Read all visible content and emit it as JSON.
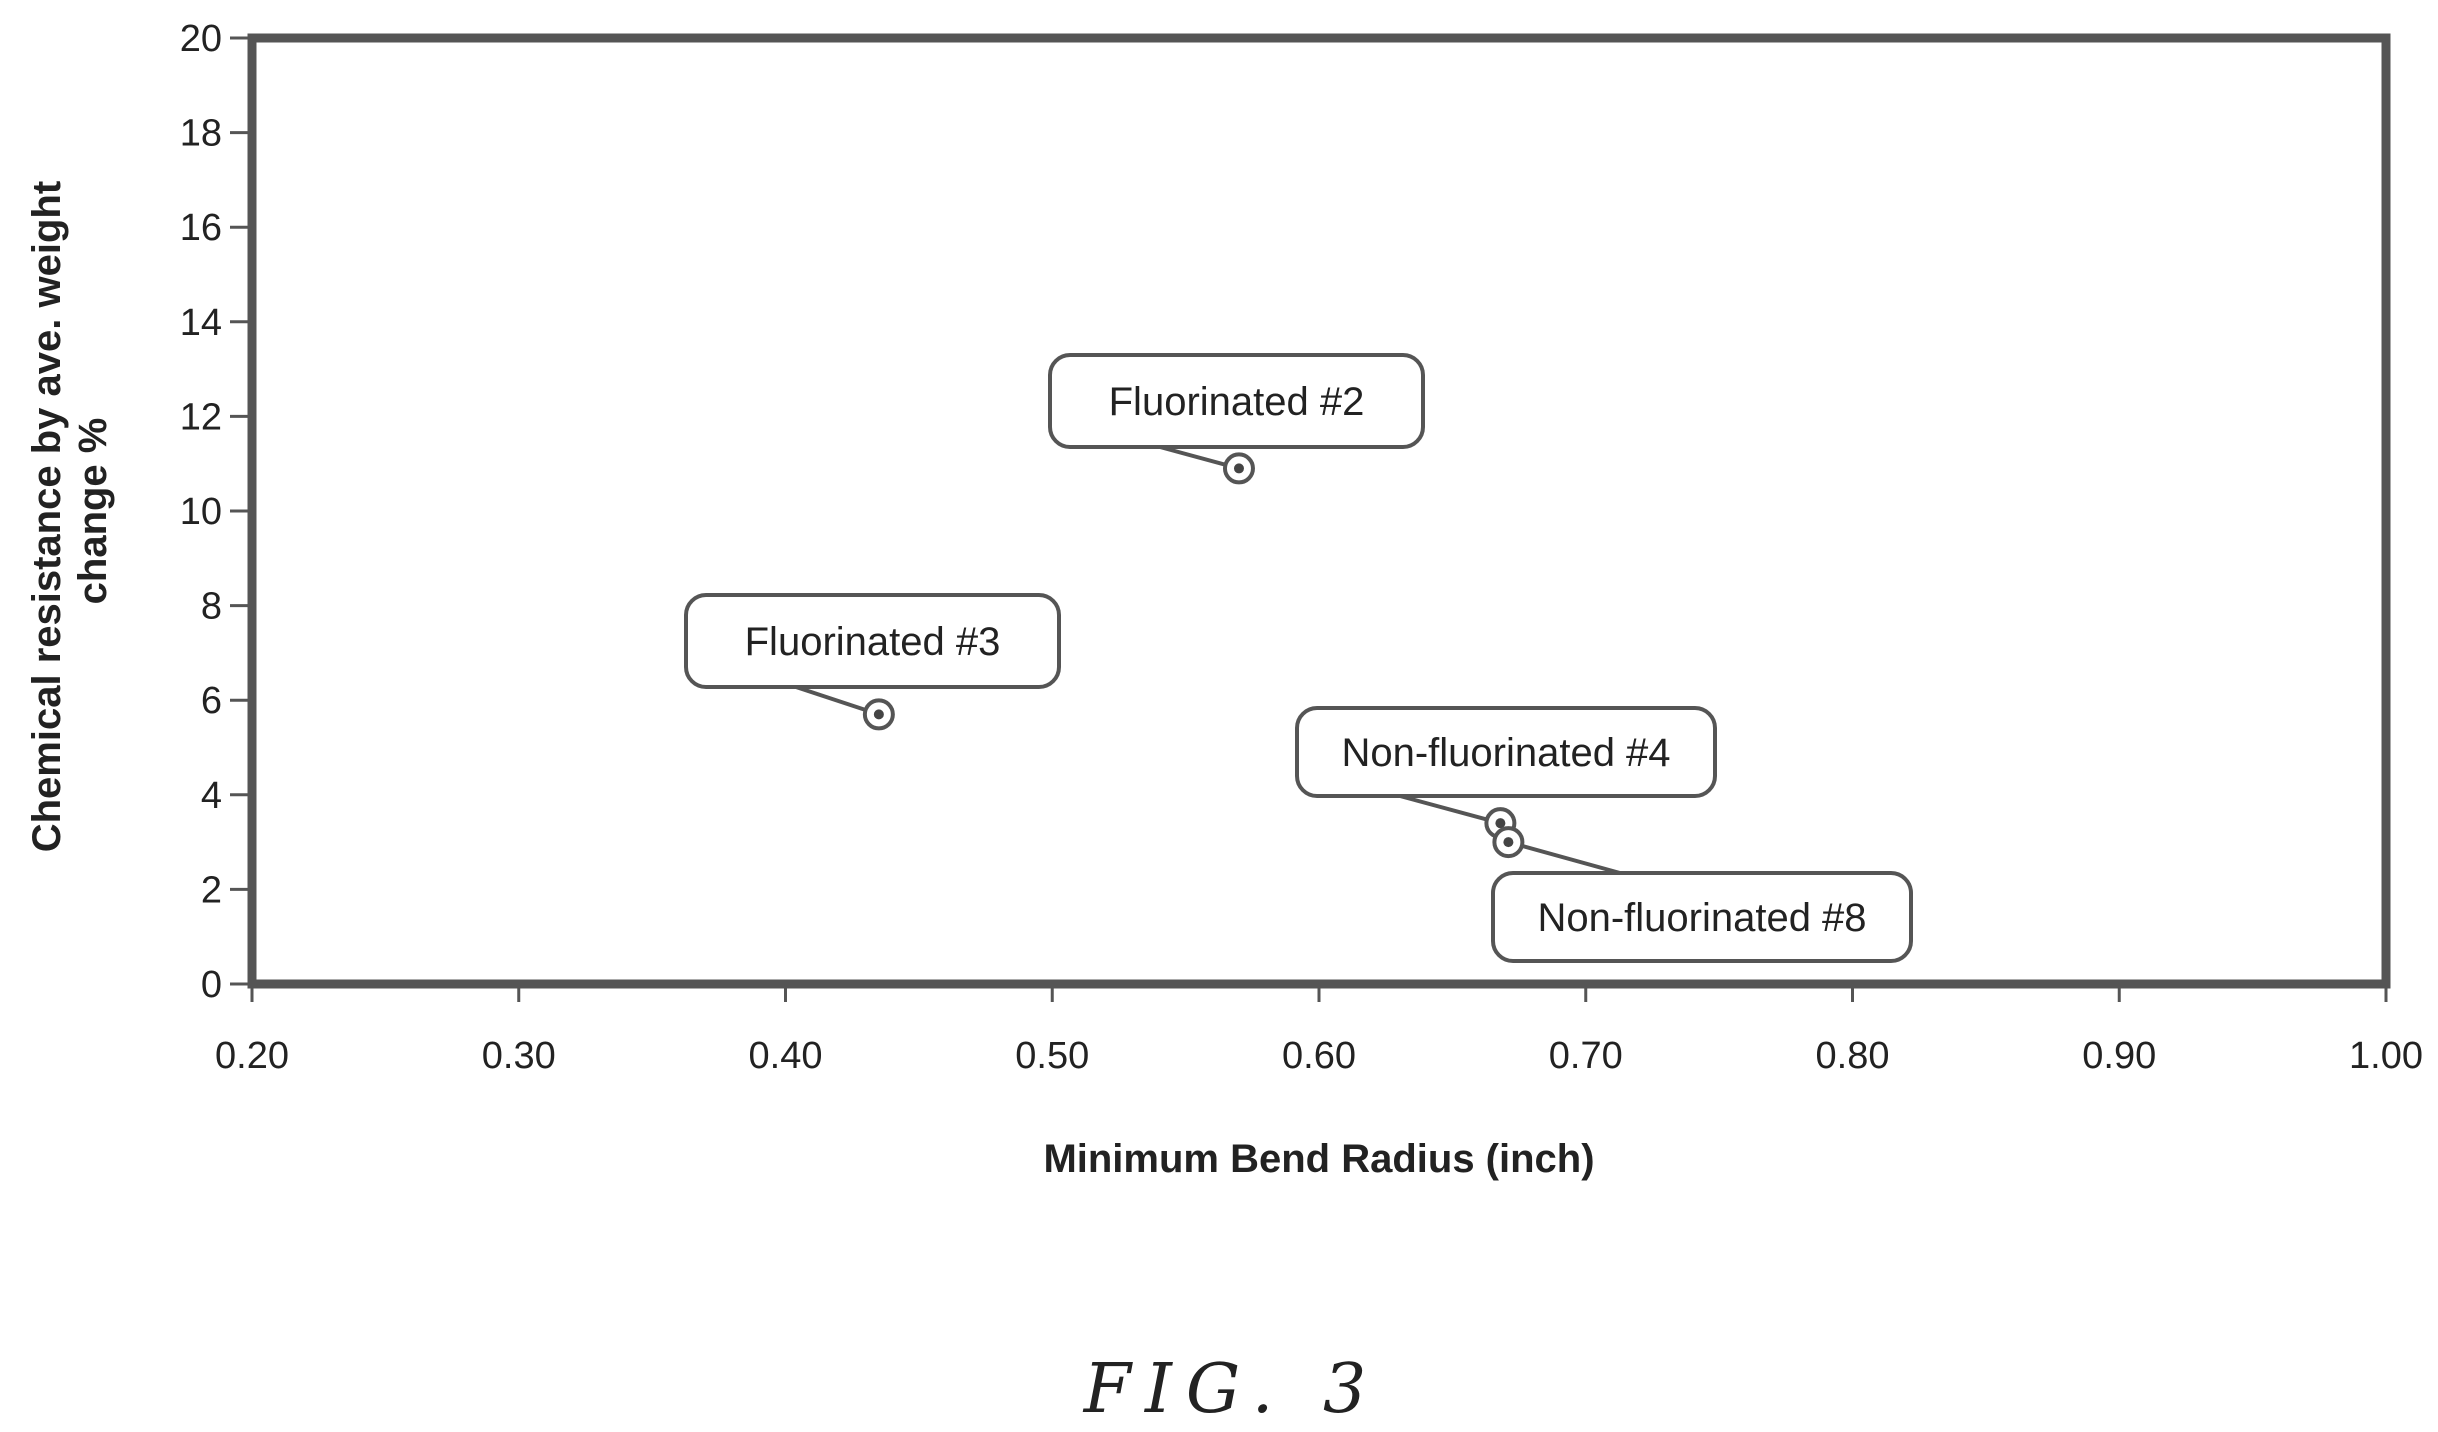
{
  "chart_data": {
    "type": "scatter",
    "xlabel": "Minimum Bend Radius (inch)",
    "ylabel_lines": [
      "Chemical resistance by ave. weight",
      "change %"
    ],
    "xlim": [
      0.2,
      1.0
    ],
    "ylim": [
      0,
      20
    ],
    "x_ticks": [
      0.2,
      0.3,
      0.4,
      0.5,
      0.6,
      0.7,
      0.8,
      0.9,
      1.0
    ],
    "x_tick_labels": [
      "0.20",
      "0.30",
      "0.40",
      "0.50",
      "0.60",
      "0.70",
      "0.80",
      "0.90",
      "1.00"
    ],
    "y_ticks": [
      0,
      2,
      4,
      6,
      8,
      10,
      12,
      14,
      16,
      18,
      20
    ],
    "y_tick_labels": [
      "0",
      "2",
      "4",
      "6",
      "8",
      "10",
      "12",
      "14",
      "16",
      "18",
      "20"
    ],
    "grid": false,
    "points": [
      {
        "label": "Fluorinated #2",
        "x": 0.57,
        "y": 10.9
      },
      {
        "label": "Fluorinated #3",
        "x": 0.435,
        "y": 5.7
      },
      {
        "label": "Non-fluorinated #4",
        "x": 0.668,
        "y": 3.4
      },
      {
        "label": "Non-fluorinated #8",
        "x": 0.671,
        "y": 3.0
      }
    ]
  },
  "caption": "FIG. 3"
}
